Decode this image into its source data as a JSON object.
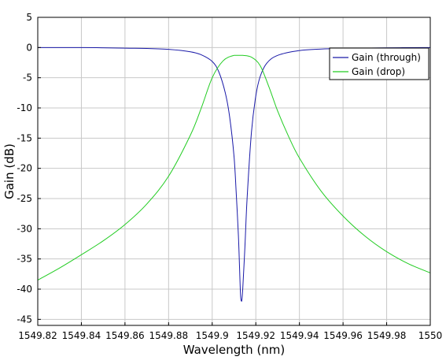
{
  "chart_data": {
    "type": "line",
    "title": "",
    "xlabel": "Wavelength (nm)",
    "ylabel": "Gain (dB)",
    "xlim": [
      1549.82,
      1550
    ],
    "ylim": [
      -46,
      5
    ],
    "grid": true,
    "legend_position": "top-right",
    "x_ticks": [
      {
        "value": 1549.82,
        "label": "1549.82"
      },
      {
        "value": 1549.84,
        "label": "1549.84"
      },
      {
        "value": 1549.86,
        "label": "1549.86"
      },
      {
        "value": 1549.88,
        "label": "1549.88"
      },
      {
        "value": 1549.9,
        "label": "1549.9"
      },
      {
        "value": 1549.92,
        "label": "1549.92"
      },
      {
        "value": 1549.94,
        "label": "1549.94"
      },
      {
        "value": 1549.96,
        "label": "1549.96"
      },
      {
        "value": 1549.98,
        "label": "1549.98"
      },
      {
        "value": 1550,
        "label": "1550"
      }
    ],
    "y_ticks": [
      {
        "value": 5,
        "label": "5"
      },
      {
        "value": 0,
        "label": "0"
      },
      {
        "value": -5,
        "label": "-5"
      },
      {
        "value": -10,
        "label": "-10"
      },
      {
        "value": -15,
        "label": "-15"
      },
      {
        "value": -20,
        "label": "-20"
      },
      {
        "value": -25,
        "label": "-25"
      },
      {
        "value": -30,
        "label": "-30"
      },
      {
        "value": -35,
        "label": "-35"
      },
      {
        "value": -40,
        "label": "-40"
      },
      {
        "value": -45,
        "label": "-45"
      }
    ],
    "series": [
      {
        "name": "Gain (through)",
        "color": "#1a1aa8",
        "x": [
          1549.82,
          1549.84,
          1549.86,
          1549.87,
          1549.88,
          1549.89,
          1549.895,
          1549.9,
          1549.903,
          1549.906,
          1549.908,
          1549.91,
          1549.911,
          1549.912,
          1549.9125,
          1549.913,
          1549.9135,
          1549.914,
          1549.915,
          1549.916,
          1549.918,
          1549.92,
          1549.922,
          1549.925,
          1549.93,
          1549.94,
          1549.95,
          1549.96,
          1549.98,
          1550
        ],
        "y": [
          0,
          0,
          -0.1,
          -0.15,
          -0.3,
          -0.7,
          -1.2,
          -2.3,
          -4.0,
          -7.5,
          -11.5,
          -18,
          -24,
          -31,
          -36,
          -41,
          -42,
          -40,
          -33,
          -25,
          -14,
          -8,
          -4.8,
          -2.6,
          -1.3,
          -0.5,
          -0.25,
          -0.15,
          -0.05,
          0
        ]
      },
      {
        "name": "Gain (drop)",
        "color": "#22cc22",
        "x": [
          1549.82,
          1549.83,
          1549.84,
          1549.85,
          1549.86,
          1549.87,
          1549.88,
          1549.89,
          1549.895,
          1549.9,
          1549.905,
          1549.91,
          1549.914,
          1549.918,
          1549.922,
          1549.926,
          1549.93,
          1549.935,
          1549.94,
          1549.95,
          1549.96,
          1549.97,
          1549.98,
          1549.99,
          1550
        ],
        "y": [
          -38.5,
          -36.5,
          -34.3,
          -32,
          -29.3,
          -25.9,
          -21.3,
          -14.5,
          -10,
          -5,
          -2.2,
          -1.3,
          -1.3,
          -1.6,
          -3,
          -6.5,
          -10.5,
          -14.7,
          -18.3,
          -23.8,
          -27.9,
          -31.2,
          -33.8,
          -35.8,
          -37.3
        ]
      }
    ]
  }
}
